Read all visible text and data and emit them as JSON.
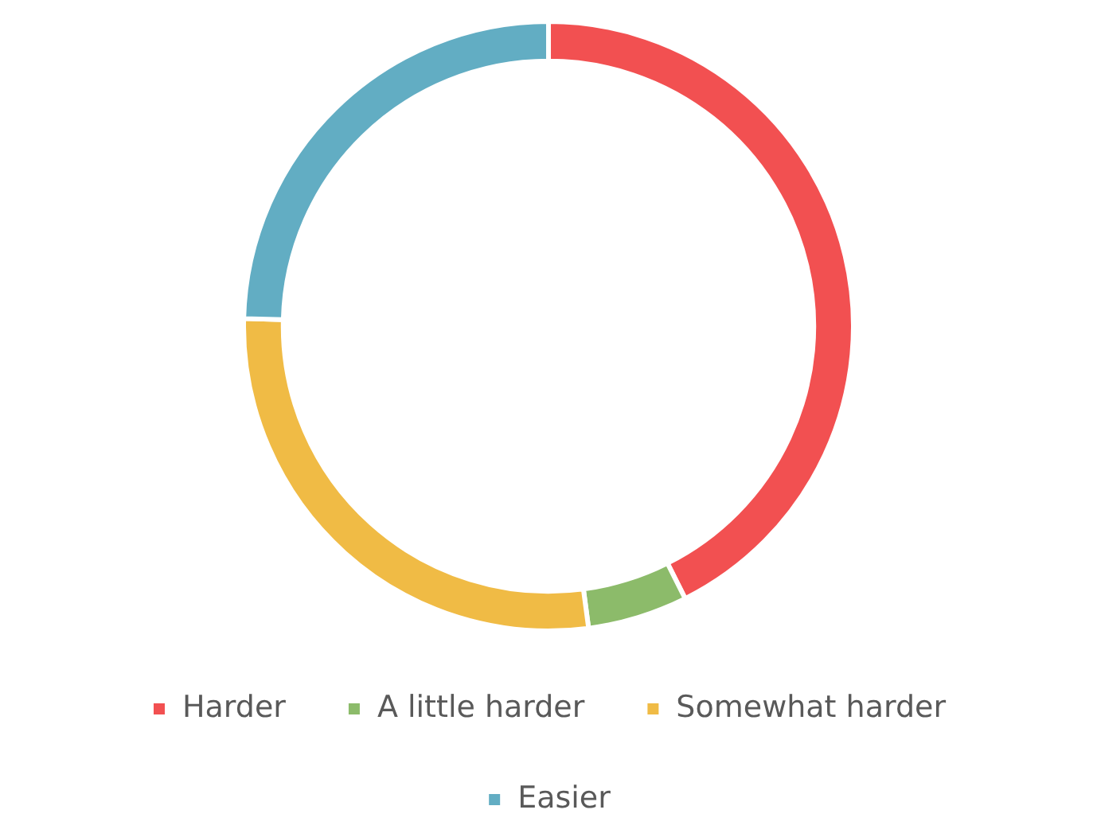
{
  "chart_data": {
    "type": "donut",
    "categories": [
      "Harder",
      "A little harder",
      "Somewhat harder",
      "Easier"
    ],
    "values": [
      42.6,
      5.3,
      27.5,
      24.6
    ],
    "colors": [
      "#f25051",
      "#8cbb6a",
      "#f0bb45",
      "#62adc3"
    ],
    "legend": "bottom"
  }
}
